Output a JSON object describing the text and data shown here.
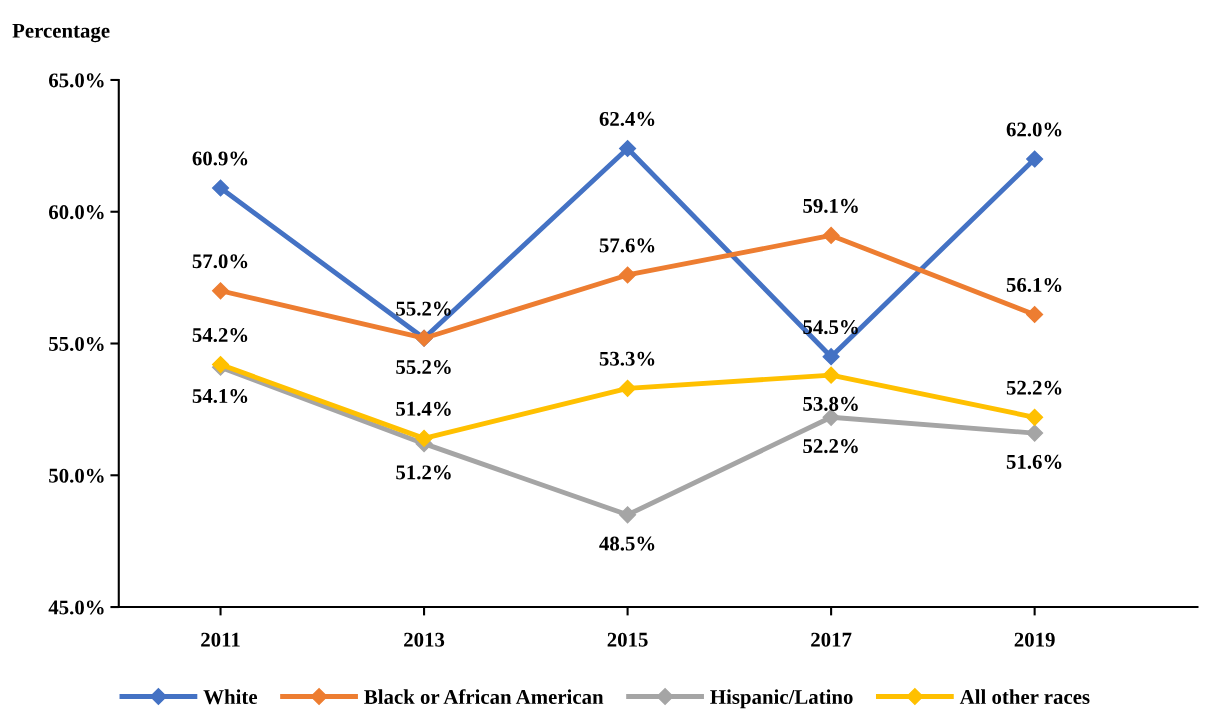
{
  "chart_data": {
    "type": "line",
    "ylabel": "Percentage",
    "categories": [
      "2011",
      "2013",
      "2015",
      "2017",
      "2019"
    ],
    "series": [
      {
        "name": "White",
        "color": "#4472c4",
        "values": [
          60.9,
          55.2,
          62.4,
          54.5,
          62.0
        ],
        "value_labels": [
          "60.9%",
          "55.2%",
          "62.4%",
          "54.5%",
          "62.0%"
        ]
      },
      {
        "name": "Black or African American",
        "color": "#ed7d31",
        "values": [
          57.0,
          55.2,
          57.6,
          59.1,
          56.1
        ],
        "value_labels": [
          "57.0%",
          "55.2%",
          "57.6%",
          "59.1%",
          "56.1%"
        ]
      },
      {
        "name": "Hispanic/Latino",
        "color": "#a5a5a5",
        "values": [
          54.1,
          51.2,
          48.5,
          52.2,
          51.6
        ],
        "value_labels": [
          "54.1%",
          "51.2%",
          "48.5%",
          "52.2%",
          "51.6%"
        ]
      },
      {
        "name": "All other races",
        "color": "#ffc000",
        "values": [
          54.2,
          51.4,
          53.3,
          53.8,
          52.2
        ],
        "value_labels": [
          "54.2%",
          "51.4%",
          "53.3%",
          "53.8%",
          "52.2%"
        ]
      }
    ],
    "ylim": [
      45,
      65
    ],
    "yticks": [
      {
        "value": 45,
        "label": "45.0%"
      },
      {
        "value": 50,
        "label": "50.0%"
      },
      {
        "value": 55,
        "label": "55.0%"
      },
      {
        "value": 60,
        "label": "60.0%"
      },
      {
        "value": 65,
        "label": "65.0%"
      }
    ],
    "grid": false,
    "legend": "bottom",
    "marker": "diamond",
    "line_style": "solid"
  }
}
